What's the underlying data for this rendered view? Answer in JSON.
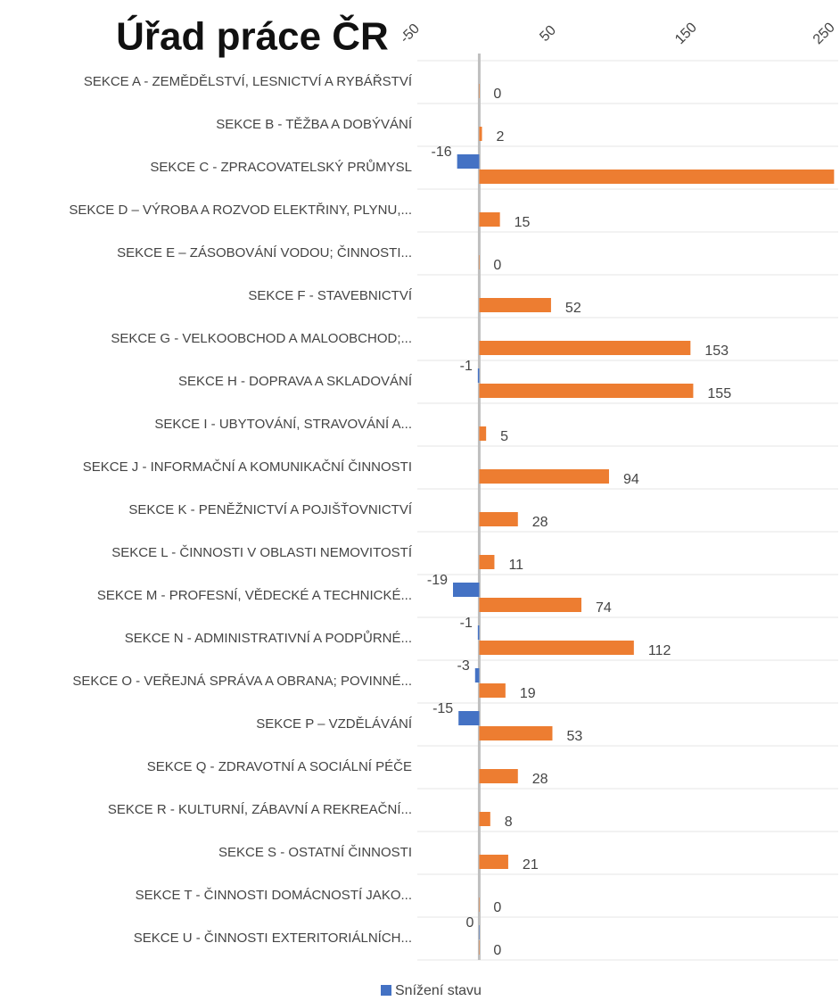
{
  "chart_data": {
    "type": "hbar",
    "title": "Úřad práce ČR",
    "categories": [
      "SEKCE A - ZEMĚDĚLSTVÍ, LESNICTVÍ A RYBÁŘSTVÍ",
      "SEKCE B - TĚŽBA A DOBÝVÁNÍ",
      "SEKCE C - ZPRACOVATELSKÝ PRŮMYSL",
      "SEKCE D – VÝROBA A ROZVOD ELEKTŘINY, PLYNU,...",
      "SEKCE E – ZÁSOBOVÁNÍ VODOU; ČINNOSTI...",
      "SEKCE F - STAVEBNICTVÍ",
      "SEKCE G - VELKOOBCHOD A MALOOBCHOD;...",
      "SEKCE H - DOPRAVA A SKLADOVÁNÍ",
      "SEKCE I - UBYTOVÁNÍ, STRAVOVÁNÍ A...",
      "SEKCE J - INFORMAČNÍ A KOMUNIKAČNÍ ČINNOSTI",
      "SEKCE K - PENĚŽNICTVÍ A POJIŠŤOVNICTVÍ",
      "SEKCE L - ČINNOSTI V OBLASTI NEMOVITOSTÍ",
      "SEKCE M - PROFESNÍ, VĚDECKÉ A TECHNICKÉ...",
      "SEKCE N - ADMINISTRATIVNÍ A PODPŮRNÉ...",
      "SEKCE O - VEŘEJNÁ SPRÁVA A OBRANA; POVINNÉ...",
      "SEKCE P – VZDĚLÁVÁNÍ",
      "SEKCE Q - ZDRAVOTNÍ A SOCIÁLNÍ PÉČE",
      "SEKCE R - KULTURNÍ, ZÁBAVNÍ A REKREAČNÍ...",
      "SEKCE S - OSTATNÍ ČINNOSTI",
      "SEKCE T - ČINNOSTI DOMÁCNOSTÍ JAKO...",
      "SEKCE U - ČINNOSTI EXTERITORIÁLNÍCH..."
    ],
    "series": [
      {
        "name": "Snížení stavu",
        "color": "#4472c4",
        "values": [
          null,
          null,
          -16,
          null,
          null,
          null,
          null,
          -1,
          null,
          null,
          null,
          null,
          -19,
          -1,
          -3,
          -15,
          null,
          null,
          null,
          null,
          0
        ]
      },
      {
        "color": "#ed7d31",
        "values": [
          0,
          2,
          257,
          15,
          0,
          52,
          153,
          155,
          5,
          94,
          28,
          11,
          74,
          112,
          19,
          53,
          28,
          8,
          21,
          0,
          0
        ]
      }
    ],
    "xlim": [
      -50,
      260
    ],
    "xticks": [
      -50,
      50,
      150,
      250
    ]
  }
}
